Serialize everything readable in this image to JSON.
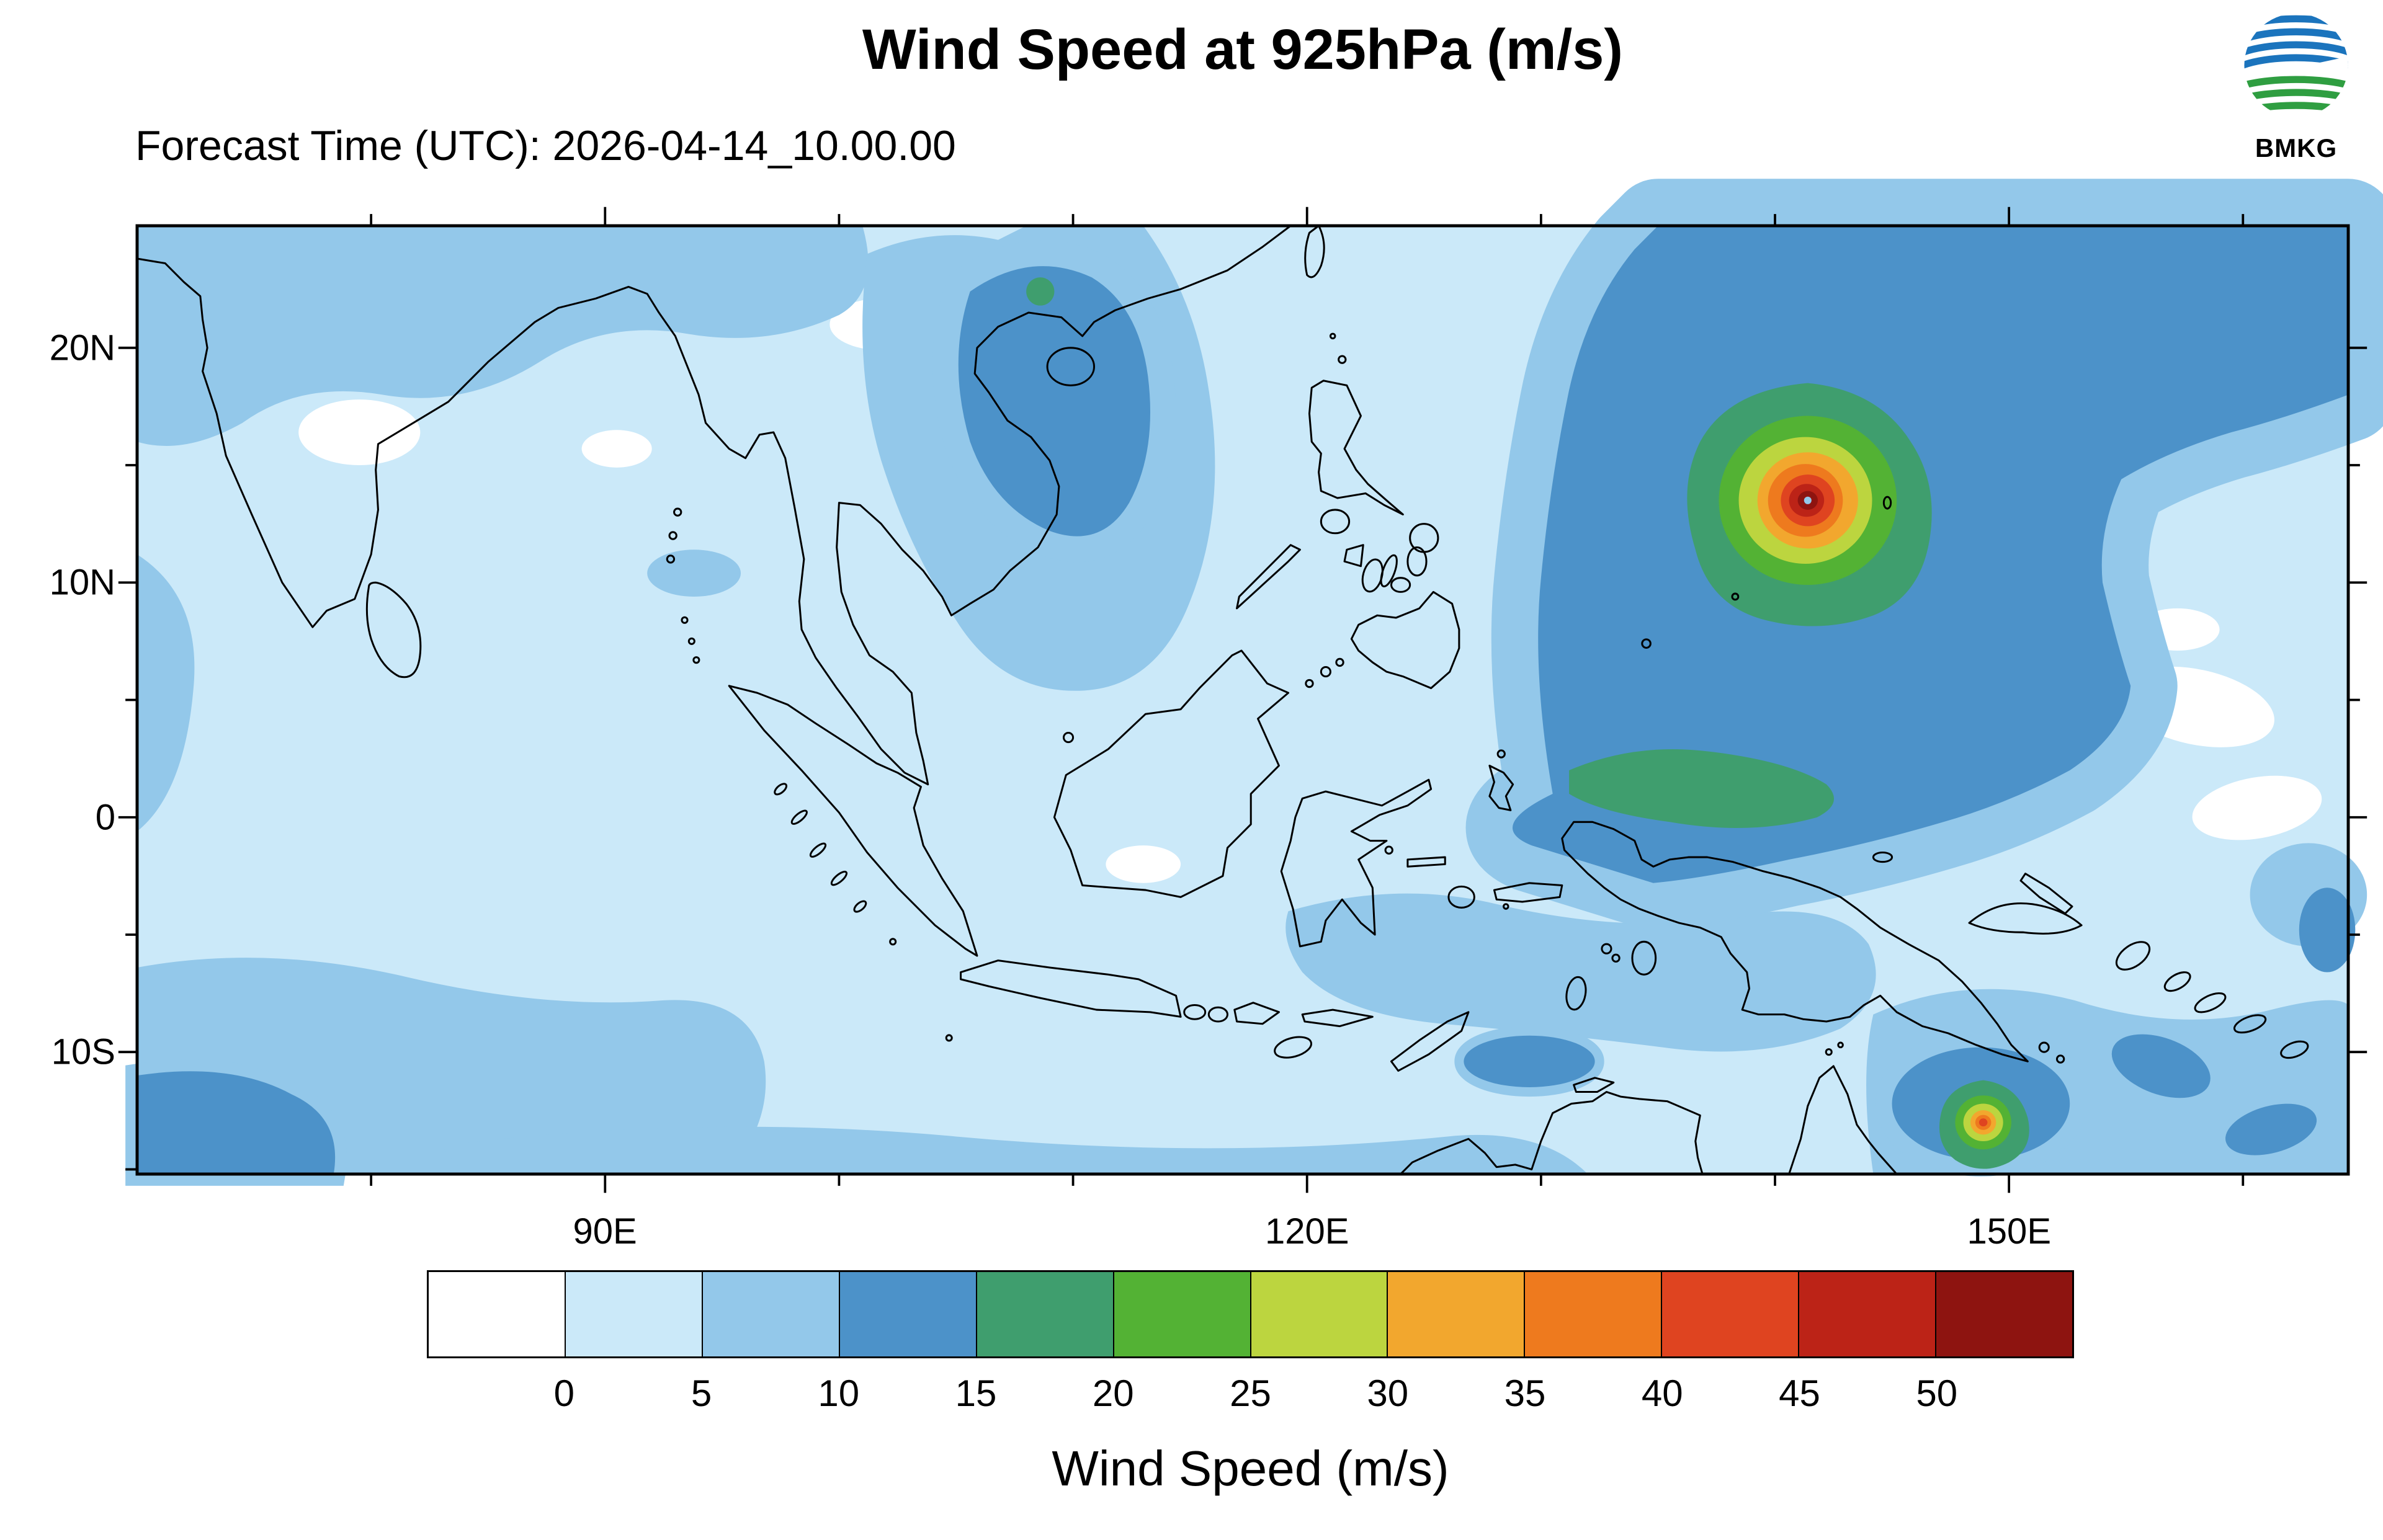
{
  "header": {
    "title": "Wind Speed at 925hPa (m/s)",
    "subtitle": "Forecast Time (UTC): 2026-04-14_10.00.00",
    "logo_text": "BMKG",
    "logo_colors": {
      "blue": "#1b74bd",
      "green": "#2f9e41"
    }
  },
  "map": {
    "y_ticks": [
      "20N",
      "10N",
      "0",
      "10S"
    ],
    "x_ticks": [
      "90E",
      "120E",
      "150E"
    ]
  },
  "colorbar": {
    "label": "Wind Speed (m/s)",
    "tick_labels": [
      "0",
      "5",
      "10",
      "15",
      "20",
      "25",
      "30",
      "35",
      "40",
      "45",
      "50"
    ],
    "colors": [
      "#ffffff",
      "#cbe9f9",
      "#93c8ea",
      "#4c92c9",
      "#3f9e6e",
      "#53b234",
      "#bcd53f",
      "#f2a72e",
      "#ee7a1e",
      "#df4420",
      "#bc2317",
      "#8e1410"
    ]
  },
  "chart_data": {
    "type": "heatmap",
    "title": "Wind Speed at 925hPa (m/s)",
    "forecast_time_utc": "2026-04-14_10.00.00",
    "variable": "wind speed at 925 hPa",
    "units": "m/s",
    "levels": [
      0,
      5,
      10,
      15,
      20,
      25,
      30,
      35,
      40,
      45,
      50
    ],
    "palette": [
      "#ffffff",
      "#cbe9f9",
      "#93c8ea",
      "#4c92c9",
      "#3f9e6e",
      "#53b234",
      "#bcd53f",
      "#f2a72e",
      "#ee7a1e",
      "#df4420",
      "#bc2317",
      "#8e1410"
    ],
    "lon_range_deg_e": [
      70,
      164.5
    ],
    "lat_range_deg_n": [
      -15.2,
      25.2
    ],
    "x_tick_labels": [
      "90E",
      "120E",
      "150E"
    ],
    "y_tick_labels": [
      "20N",
      "10N",
      "0",
      "10S"
    ],
    "legend_position": "bottom",
    "features": [
      {
        "name": "intense tropical cyclone",
        "lon_e": 141.5,
        "lat_n": 13.5,
        "peak_band_m_s": "50+",
        "structure": "concentric rings from 10-15 m/s outer region to >50 m/s core with calm eye"
      },
      {
        "name": "secondary tropical cyclone",
        "lon_e": 148.9,
        "lat_n": -13.2,
        "peak_band_m_s": "40-45",
        "structure": "small ring system south of Papua New Guinea tail"
      },
      {
        "name": "broad 10-15 m/s wind mass",
        "region": "western North Pacific around the cyclone, extending to the northeast corner of the domain"
      },
      {
        "name": "10-15 m/s patch",
        "region": "Vietnam coast / Gulf of Tonkin / northern South China Sea"
      },
      {
        "name": "15-20 m/s equatorial patch",
        "region": "near-equatorial Pacific around 132E-142E, 0-3N"
      },
      {
        "name": "background",
        "band_m_s": "0-5",
        "note": "pale blue over most of the Indian Ocean and Maritime Continent with scattered near-calm (white) patches"
      }
    ]
  }
}
